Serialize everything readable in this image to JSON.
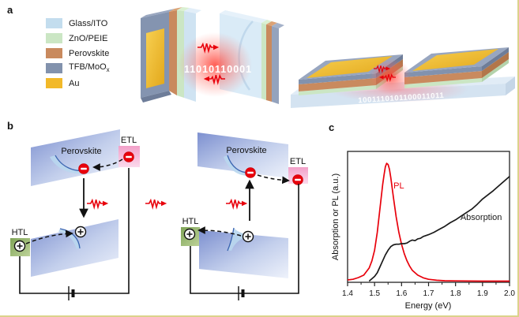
{
  "figure": {
    "panel_a_label": "a",
    "panel_b_label": "b",
    "panel_c_label": "c"
  },
  "colors": {
    "photon_red": "#e8000b",
    "page_border": "#dbd28b"
  },
  "legend": {
    "items": [
      {
        "label": "Glass/ITO",
        "color": "#c3ddee"
      },
      {
        "label": "ZnO/PEIE",
        "color": "#cbe6c4"
      },
      {
        "label": "Perovskite",
        "color": "#c98a5e"
      },
      {
        "label": "TFB/MoO",
        "label_sub": "x",
        "color": "#8292ad"
      },
      {
        "label": "Au",
        "color": "#f2b929"
      }
    ]
  },
  "panel_a": {
    "facing_link_binary": "11010110001",
    "lateral_link_binary": "1001110101100011011"
  },
  "panel_b": {
    "emitter": {
      "perovskite": "Perovskite",
      "etl": "ETL",
      "htl": "HTL"
    },
    "detector": {
      "perovskite": "Perovskite",
      "etl": "ETL",
      "htl": "HTL"
    }
  },
  "chart_data": {
    "type": "line",
    "title": "",
    "xlabel": "Energy (eV)",
    "ylabel": "Absorption or PL (a.u.)",
    "xlim": [
      1.4,
      2.0
    ],
    "ylim": [
      0,
      1.1
    ],
    "x_ticks": [
      1.4,
      1.5,
      1.6,
      1.7,
      1.8,
      1.9,
      2.0
    ],
    "x_minor_step": 0.05,
    "grid": false,
    "legend_position": "inline-labels",
    "series": [
      {
        "name": "PL",
        "color": "#e8000b",
        "label_pos": [
          1.59,
          0.79
        ],
        "x": [
          1.4,
          1.42,
          1.44,
          1.46,
          1.48,
          1.49,
          1.5,
          1.51,
          1.52,
          1.53,
          1.535,
          1.54,
          1.545,
          1.55,
          1.555,
          1.56,
          1.57,
          1.58,
          1.59,
          1.6,
          1.61,
          1.62,
          1.63,
          1.64,
          1.66,
          1.68,
          1.7,
          1.73,
          1.76,
          1.8,
          1.9,
          2.0
        ],
        "y": [
          0.02,
          0.025,
          0.04,
          0.06,
          0.12,
          0.18,
          0.27,
          0.42,
          0.62,
          0.82,
          0.9,
          0.97,
          1.0,
          0.99,
          0.95,
          0.88,
          0.71,
          0.55,
          0.42,
          0.32,
          0.24,
          0.18,
          0.135,
          0.1,
          0.06,
          0.038,
          0.025,
          0.017,
          0.013,
          0.012,
          0.01,
          0.01
        ]
      },
      {
        "name": "Absorption",
        "color": "#1a1a1a",
        "label_pos": [
          1.895,
          0.525
        ],
        "x": [
          1.48,
          1.5,
          1.51,
          1.52,
          1.53,
          1.54,
          1.55,
          1.56,
          1.57,
          1.58,
          1.59,
          1.6,
          1.61,
          1.62,
          1.63,
          1.64,
          1.65,
          1.66,
          1.67,
          1.68,
          1.7,
          1.72,
          1.74,
          1.76,
          1.78,
          1.8,
          1.82,
          1.84,
          1.86,
          1.88,
          1.9,
          1.92,
          1.94,
          1.96,
          1.98,
          2.0
        ],
        "y": [
          0.01,
          0.05,
          0.08,
          0.13,
          0.18,
          0.23,
          0.27,
          0.3,
          0.315,
          0.32,
          0.32,
          0.325,
          0.325,
          0.33,
          0.345,
          0.355,
          0.35,
          0.365,
          0.37,
          0.385,
          0.4,
          0.42,
          0.445,
          0.47,
          0.5,
          0.525,
          0.555,
          0.585,
          0.615,
          0.655,
          0.7,
          0.735,
          0.77,
          0.81,
          0.85,
          0.89
        ]
      }
    ]
  }
}
